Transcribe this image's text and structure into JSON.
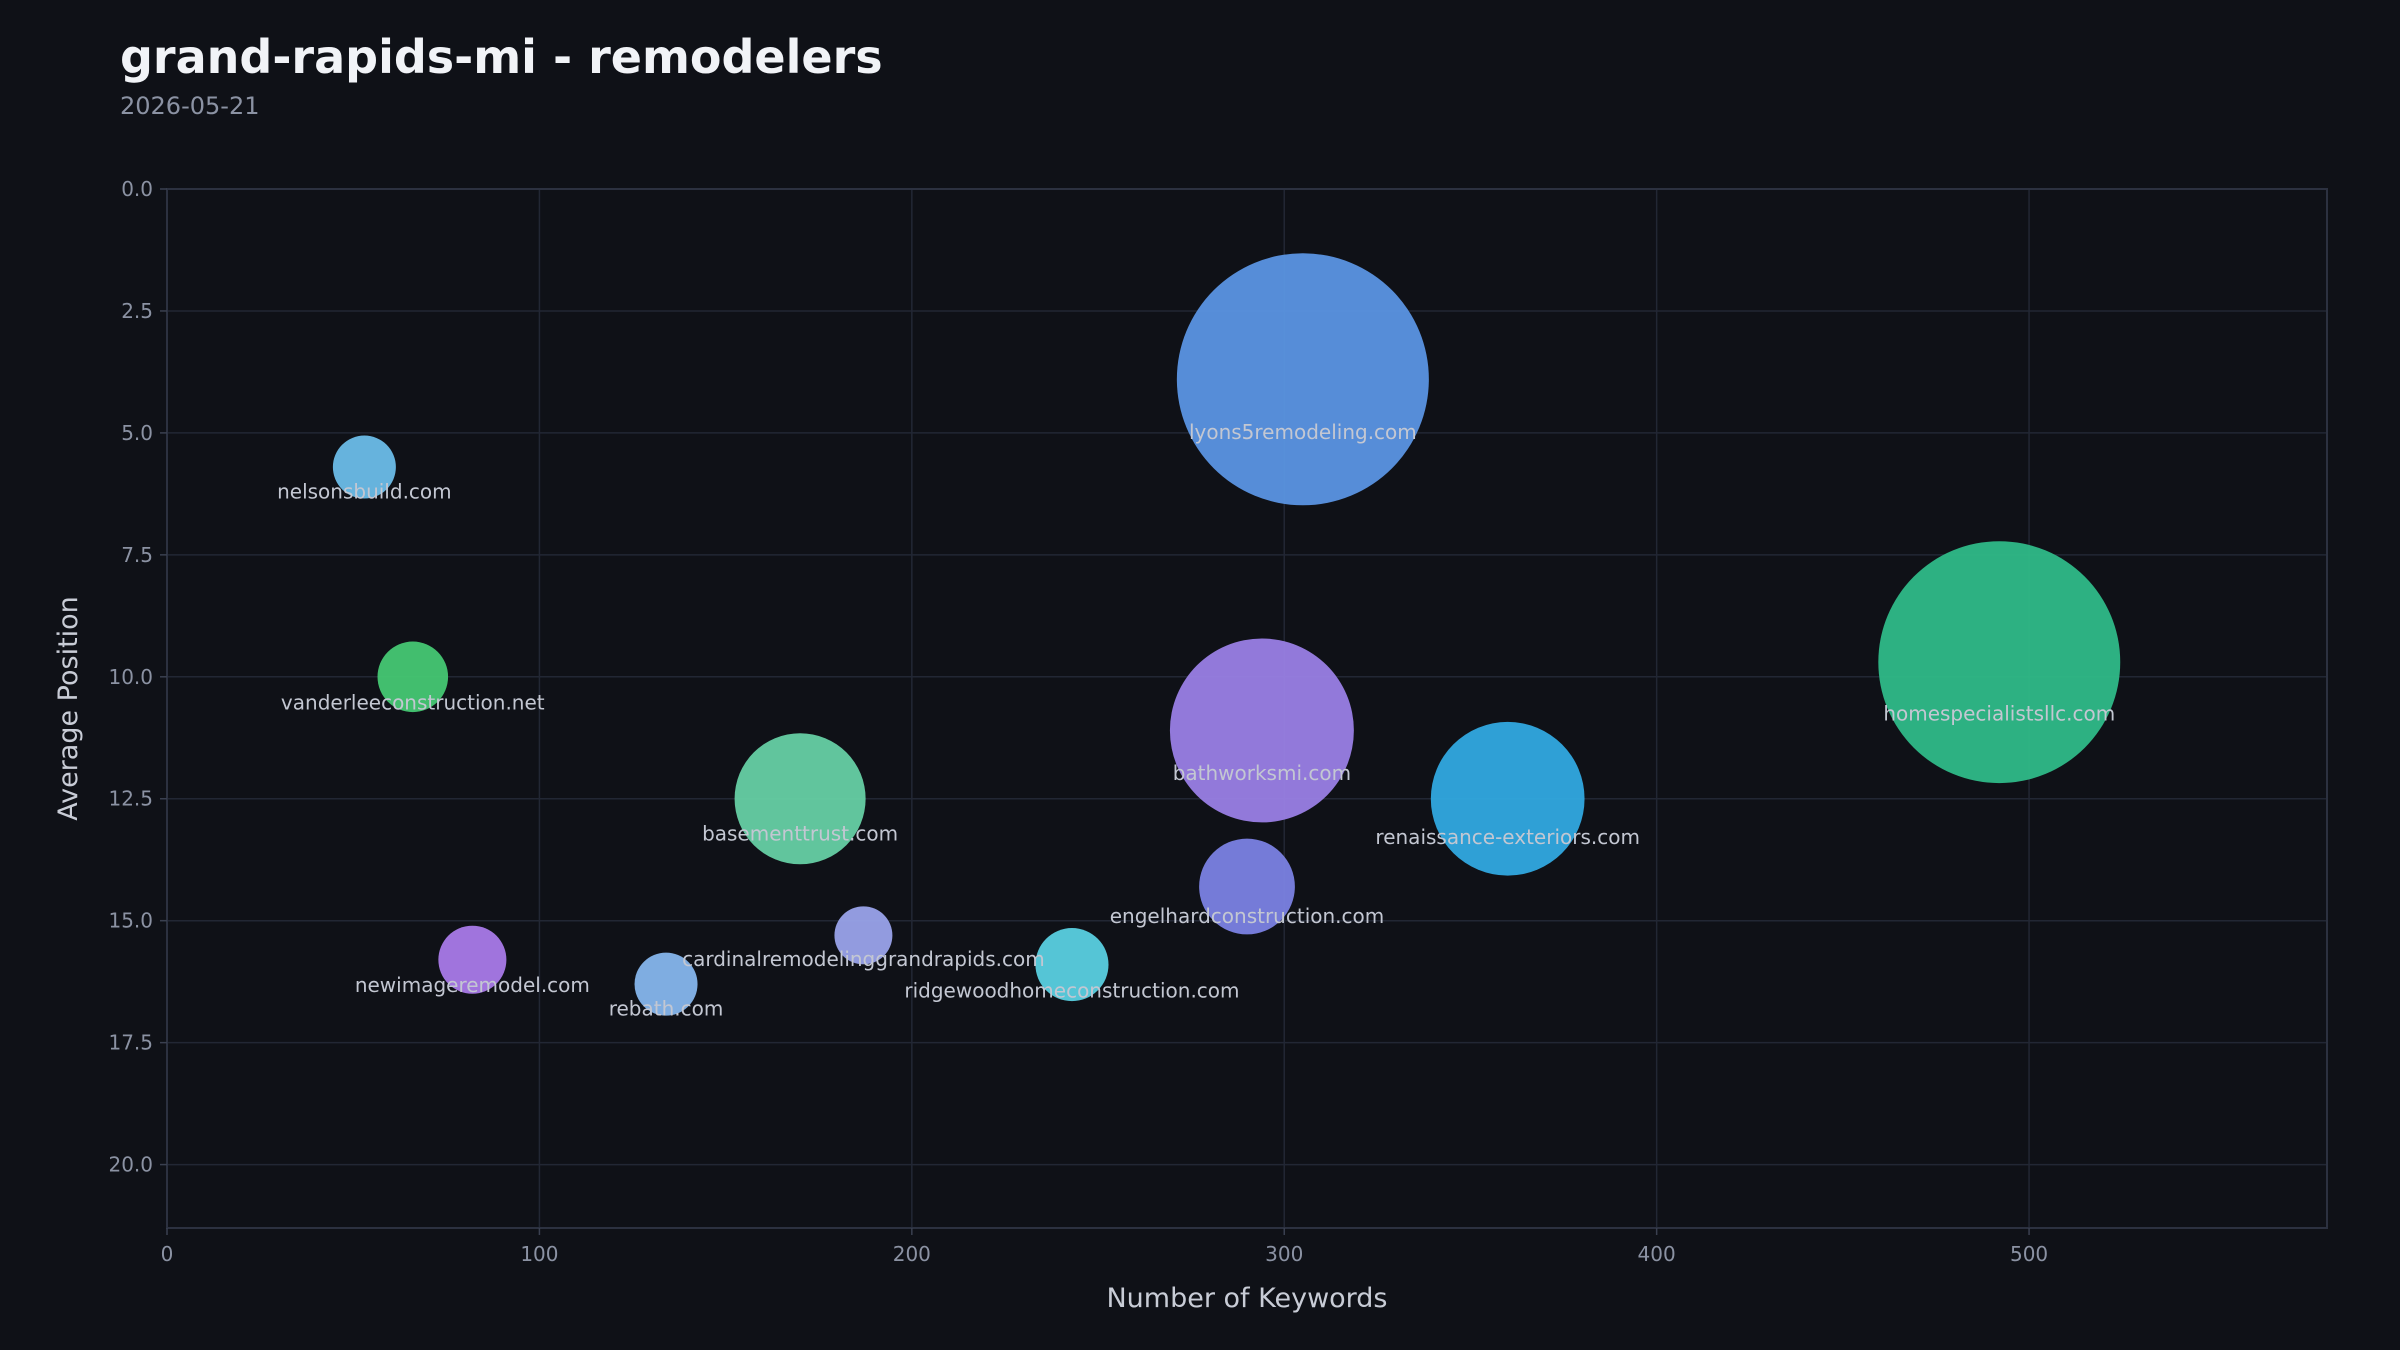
{
  "header": {
    "title": "grand-rapids-mi - remodelers",
    "date": "2026-05-21"
  },
  "chart_data": {
    "type": "scatter",
    "subtype": "bubble",
    "xlabel": "Number of Keywords",
    "ylabel": "Average Position",
    "xlim": [
      0,
      580
    ],
    "ylim": [
      21.3,
      0
    ],
    "y_inverted": true,
    "x_ticks": [
      0,
      100,
      200,
      300,
      400,
      500
    ],
    "y_ticks": [
      0.0,
      2.5,
      5.0,
      7.5,
      10.0,
      12.5,
      15.0,
      17.5,
      20.0
    ],
    "y_tick_labels": [
      "0.0",
      "2.5",
      "5.0",
      "7.5",
      "10.0",
      "12.5",
      "15.0",
      "17.5",
      "20.0"
    ],
    "grid": true,
    "points": [
      {
        "label": "lyons5remodeling.com",
        "x": 305,
        "y": 3.9,
        "relative_size": 1.0,
        "color": "#5b95e3"
      },
      {
        "label": "homespecialistsllc.com",
        "x": 492,
        "y": 9.7,
        "relative_size": 0.96,
        "color": "#2fbb88"
      },
      {
        "label": "bathworksmi.com",
        "x": 294,
        "y": 11.1,
        "relative_size": 0.73,
        "color": "#9a80e5"
      },
      {
        "label": "renaissance-exteriors.com",
        "x": 360,
        "y": 12.5,
        "relative_size": 0.61,
        "color": "#32a9e0"
      },
      {
        "label": "basementtrust.com",
        "x": 170,
        "y": 12.5,
        "relative_size": 0.52,
        "color": "#66d0a4"
      },
      {
        "label": "engelhardconstruction.com",
        "x": 290,
        "y": 14.3,
        "relative_size": 0.38,
        "color": "#7b82e3"
      },
      {
        "label": "ridgewoodhomeconstruction.com",
        "x": 243,
        "y": 15.9,
        "relative_size": 0.29,
        "color": "#5ad0e0"
      },
      {
        "label": "rebath.com",
        "x": 134,
        "y": 16.3,
        "relative_size": 0.25,
        "color": "#86b6ec"
      },
      {
        "label": "newimageremodel.com",
        "x": 82,
        "y": 15.8,
        "relative_size": 0.27,
        "color": "#a97ae8"
      },
      {
        "label": "cardinalremodelinggrandrapids.com",
        "x": 187,
        "y": 15.3,
        "relative_size": 0.23,
        "color": "#9aa3ea"
      },
      {
        "label": "vanderleeconstruction.net",
        "x": 66,
        "y": 10.0,
        "relative_size": 0.28,
        "color": "#46c873"
      },
      {
        "label": "nelsonsbuild.com",
        "x": 53,
        "y": 5.7,
        "relative_size": 0.25,
        "color": "#6cbde8"
      }
    ]
  }
}
